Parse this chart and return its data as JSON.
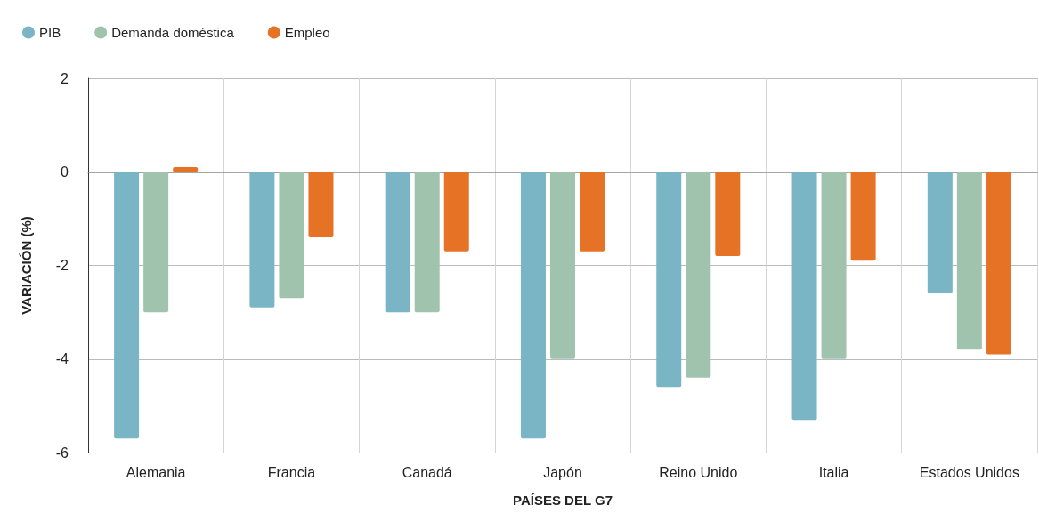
{
  "chart_data": {
    "type": "bar",
    "xlabel": "PAÍSES DEL G7",
    "ylabel": "VARIACIÓN (%)",
    "categories": [
      "Alemania",
      "Francia",
      "Canadá",
      "Japón",
      "Reino Unido",
      "Italia",
      "Estados Unidos"
    ],
    "series": [
      {
        "name": "PIB",
        "color": "#7ab5c5",
        "values": [
          -5.7,
          -2.9,
          -3.0,
          -5.7,
          -4.6,
          -5.3,
          -2.6
        ]
      },
      {
        "name": "Demanda doméstica",
        "color": "#a0c3ae",
        "values": [
          -3.0,
          -2.7,
          -3.0,
          -4.0,
          -4.4,
          -4.0,
          -3.8
        ]
      },
      {
        "name": "Empleo",
        "color": "#e57225",
        "values": [
          0.1,
          -1.4,
          -1.7,
          -1.7,
          -1.8,
          -1.9,
          -3.9
        ]
      }
    ],
    "ylim": [
      -6,
      2
    ],
    "yticks": [
      -6,
      -4,
      -2,
      0,
      2
    ],
    "grid": true,
    "legend": "top left"
  }
}
